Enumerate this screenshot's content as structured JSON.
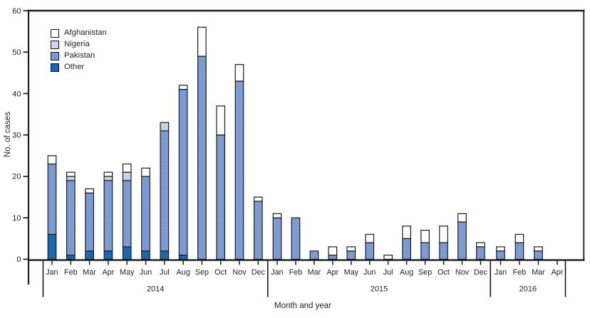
{
  "chart_data": {
    "type": "stacked-bar",
    "title": "",
    "xlabel": "Month and year",
    "ylabel": "No. of cases",
    "ylim": [
      0,
      60
    ],
    "yticks": [
      0,
      10,
      20,
      30,
      40,
      50,
      60
    ],
    "grid": false,
    "legend_position": "top-left",
    "legend": [
      {
        "name": "Afghanistan",
        "color": "#ffffff"
      },
      {
        "name": "Nigeria",
        "color": "#cbd5ec"
      },
      {
        "name": "Pakistan",
        "color": "#7b9cd6"
      },
      {
        "name": "Other",
        "color": "#1467b2"
      }
    ],
    "stack_order_bottom_to_top": [
      "Other",
      "Pakistan",
      "Nigeria",
      "Afghanistan"
    ],
    "groups": [
      {
        "year": "2014",
        "categories": [
          "Jan",
          "Feb",
          "Mar",
          "Apr",
          "May",
          "Jun",
          "Jul",
          "Aug",
          "Sep",
          "Oct",
          "Nov",
          "Dec"
        ],
        "series": [
          {
            "name": "Afghanistan",
            "values": [
              2,
              1,
              1,
              1,
              2,
              2,
              0,
              1,
              7,
              7,
              4,
              1
            ]
          },
          {
            "name": "Nigeria",
            "values": [
              0,
              1,
              0,
              1,
              2,
              0,
              2,
              0,
              0,
              0,
              0,
              0
            ]
          },
          {
            "name": "Pakistan",
            "values": [
              17,
              18,
              14,
              17,
              16,
              18,
              29,
              40,
              49,
              30,
              43,
              14
            ]
          },
          {
            "name": "Other",
            "values": [
              6,
              1,
              2,
              2,
              3,
              2,
              2,
              1,
              0,
              0,
              0,
              0
            ]
          }
        ],
        "totals": [
          25,
          21,
          17,
          21,
          23,
          22,
          33,
          42,
          56,
          37,
          47,
          15
        ]
      },
      {
        "year": "2015",
        "categories": [
          "Jan",
          "Feb",
          "Mar",
          "Apr",
          "May",
          "Jun",
          "Jul",
          "Aug",
          "Sep",
          "Oct",
          "Nov",
          "Dec"
        ],
        "series": [
          {
            "name": "Afghanistan",
            "values": [
              1,
              0,
              0,
              2,
              1,
              2,
              1,
              3,
              3,
              4,
              2,
              1
            ]
          },
          {
            "name": "Nigeria",
            "values": [
              0,
              0,
              0,
              0,
              0,
              0,
              0,
              0,
              0,
              0,
              0,
              0
            ]
          },
          {
            "name": "Pakistan",
            "values": [
              10,
              10,
              2,
              1,
              2,
              4,
              0,
              5,
              4,
              4,
              9,
              3
            ]
          },
          {
            "name": "Other",
            "values": [
              0,
              0,
              0,
              0,
              0,
              0,
              0,
              0,
              0,
              0,
              0,
              0
            ]
          }
        ],
        "totals": [
          11,
          10,
          2,
          3,
          3,
          6,
          1,
          8,
          7,
          8,
          11,
          4
        ]
      },
      {
        "year": "2016",
        "categories": [
          "Jan",
          "Feb",
          "Mar",
          "Apr"
        ],
        "series": [
          {
            "name": "Afghanistan",
            "values": [
              1,
              2,
              1,
              0
            ]
          },
          {
            "name": "Nigeria",
            "values": [
              0,
              0,
              0,
              0
            ]
          },
          {
            "name": "Pakistan",
            "values": [
              2,
              4,
              2,
              0
            ]
          },
          {
            "name": "Other",
            "values": [
              0,
              0,
              0,
              0
            ]
          }
        ],
        "totals": [
          3,
          6,
          3,
          0
        ]
      }
    ]
  }
}
